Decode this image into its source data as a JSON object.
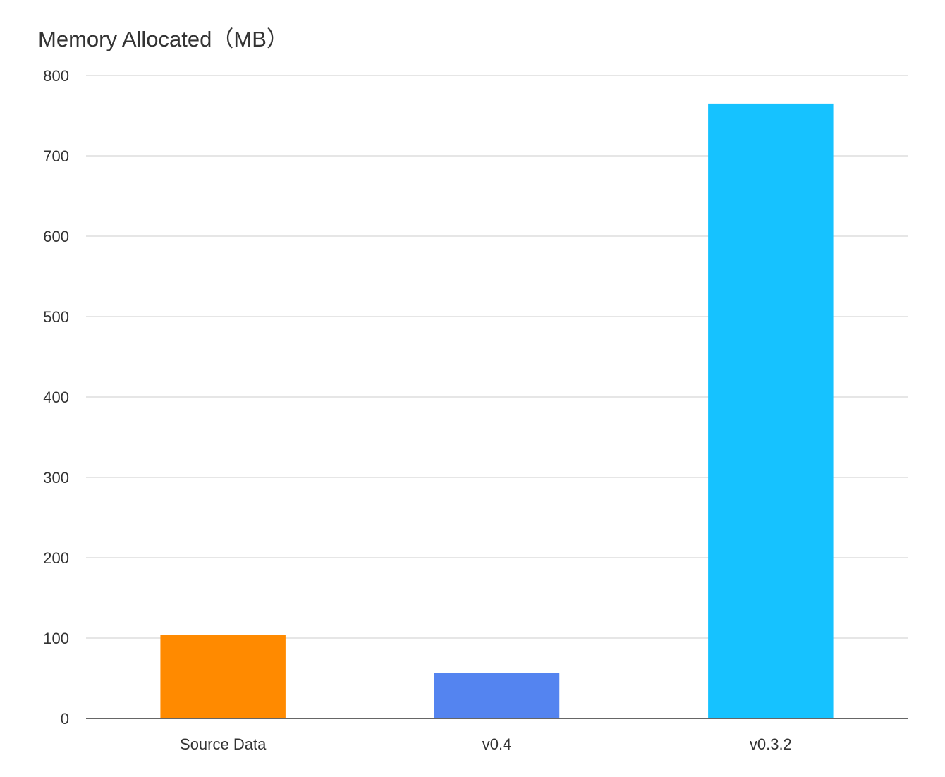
{
  "chart_data": {
    "type": "bar",
    "title": "Memory Allocated（MB）",
    "xlabel": "",
    "ylabel": "",
    "categories": [
      "Source Data",
      "v0.4",
      "v0.3.2"
    ],
    "values": [
      104,
      57,
      765
    ],
    "colors": [
      "#ff8a00",
      "#5484f0",
      "#16c2ff"
    ],
    "ylim": [
      0,
      800
    ],
    "yticks": [
      0,
      100,
      200,
      300,
      400,
      500,
      600,
      700,
      800
    ],
    "grid": true,
    "legend": "none"
  }
}
